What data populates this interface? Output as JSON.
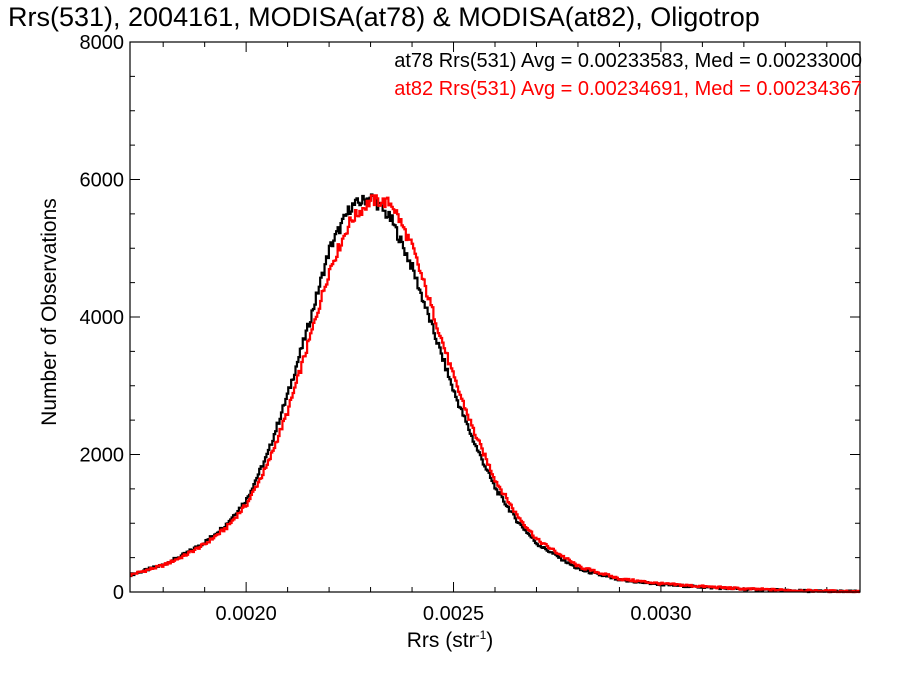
{
  "chart_data": {
    "type": "line",
    "title": "Rrs(531), 2004161, MODISA(at78) & MODISA(at82), Oligotrop",
    "xlabel_base": "Rrs (str",
    "xlabel_exp": "-1",
    "xlabel_close": ")",
    "ylabel": "Number of Observations",
    "xlim": [
      0.00172,
      0.00348
    ],
    "ylim": [
      0,
      8000
    ],
    "x_ticks": [
      0.002,
      0.0025,
      0.003
    ],
    "x_tick_labels": [
      "0.0020",
      "0.0025",
      "0.0030"
    ],
    "y_ticks": [
      0,
      2000,
      4000,
      6000,
      8000
    ],
    "y_tick_labels": [
      "0",
      "2000",
      "4000",
      "6000",
      "8000"
    ],
    "series": [
      {
        "name": "at78",
        "color": "#000000",
        "legend": "at78 Rrs(531) Avg = 0.00233583, Med = 0.00233000",
        "x": [
          0.00172,
          0.0018,
          0.00185,
          0.0019,
          0.00195,
          0.002,
          0.00205,
          0.0021,
          0.00215,
          0.0022,
          0.00225,
          0.0023,
          0.00235,
          0.0024,
          0.00245,
          0.0025,
          0.00255,
          0.0026,
          0.00265,
          0.0027,
          0.0028,
          0.0029,
          0.003,
          0.0031,
          0.0032,
          0.00335,
          0.00348
        ],
        "y": [
          250,
          400,
          550,
          730,
          980,
          1350,
          2000,
          2900,
          3900,
          5000,
          5600,
          5750,
          5400,
          4700,
          3800,
          2900,
          2150,
          1500,
          1050,
          700,
          330,
          170,
          110,
          70,
          40,
          15,
          5
        ]
      },
      {
        "name": "at82",
        "color": "#ff0000",
        "legend": "at82 Rrs(531) Avg = 0.00234691, Med = 0.00234367",
        "x": [
          0.00172,
          0.0018,
          0.00185,
          0.0019,
          0.00195,
          0.002,
          0.00205,
          0.0021,
          0.00215,
          0.0022,
          0.00225,
          0.0023,
          0.00235,
          0.0024,
          0.00245,
          0.0025,
          0.00255,
          0.0026,
          0.00265,
          0.0027,
          0.0028,
          0.0029,
          0.003,
          0.0031,
          0.0032,
          0.00335,
          0.00348
        ],
        "y": [
          250,
          390,
          530,
          700,
          930,
          1280,
          1850,
          2650,
          3650,
          4700,
          5400,
          5700,
          5650,
          5000,
          4050,
          3100,
          2300,
          1620,
          1130,
          760,
          370,
          190,
          120,
          80,
          45,
          18,
          6
        ]
      }
    ]
  }
}
